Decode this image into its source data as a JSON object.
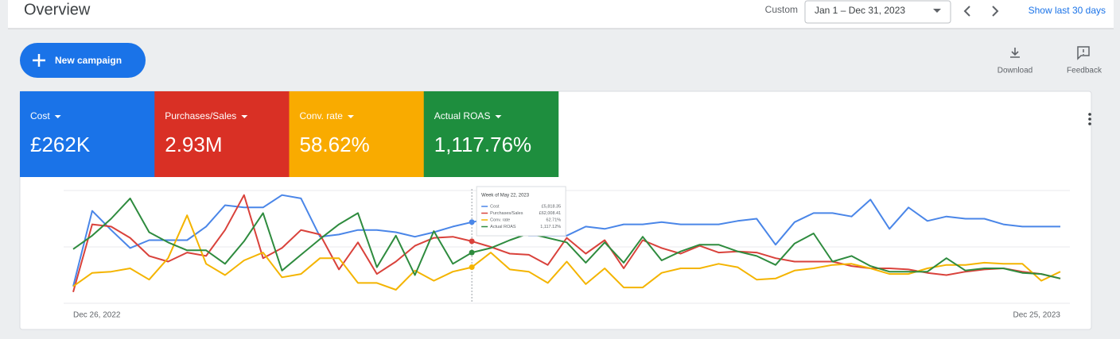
{
  "header": {
    "title": "Overview",
    "range_type": "Custom",
    "date_range": "Jan 1 – Dec 31, 2023",
    "shortcut": "Show last 30 days"
  },
  "toolbar": {
    "new_campaign": "New campaign",
    "download": "Download",
    "feedback": "Feedback"
  },
  "scorecards": [
    {
      "label": "Cost",
      "value": "£262K",
      "color": "#1a73e8"
    },
    {
      "label": "Purchases/Sales",
      "value": "2.93M",
      "color": "#d93025"
    },
    {
      "label": "Conv. rate",
      "value": "58.62%",
      "color": "#f9ab00"
    },
    {
      "label": "Actual ROAS",
      "value": "1,117.76%",
      "color": "#1e8e3e"
    }
  ],
  "chart": {
    "type": "line",
    "ylim": [
      0,
      100
    ],
    "yticks": [
      0,
      50,
      100
    ],
    "show_tick_labels": false,
    "grid": true,
    "categories": [
      "Dec 26, 2022",
      null,
      null,
      null,
      null,
      null,
      null,
      null,
      null,
      null,
      null,
      null,
      null,
      null,
      null,
      null,
      null,
      null,
      null,
      null,
      null,
      null,
      null,
      null,
      null,
      null,
      null,
      null,
      null,
      null,
      null,
      null,
      null,
      null,
      null,
      null,
      null,
      null,
      null,
      null,
      null,
      null,
      null,
      null,
      null,
      null,
      null,
      null,
      null,
      null,
      null,
      null,
      "Dec 25, 2023"
    ],
    "series": [
      {
        "name": "Cost",
        "color": "#4a86e8",
        "values": [
          15,
          82,
          65,
          49,
          56,
          56,
          56,
          68,
          87,
          85,
          85,
          96,
          93,
          59,
          61,
          65,
          65,
          63,
          59,
          63,
          68,
          72,
          75,
          65,
          60,
          60,
          60,
          68,
          66,
          70,
          70,
          72,
          70,
          70,
          70,
          73,
          75,
          52,
          72,
          80,
          80,
          77,
          92,
          66,
          85,
          73,
          77,
          75,
          75,
          70,
          68,
          68,
          68
        ]
      },
      {
        "name": "Purchases/Sales",
        "color": "#d9423b",
        "values": [
          10,
          70,
          68,
          58,
          42,
          37,
          45,
          42,
          65,
          96,
          40,
          49,
          65,
          61,
          30,
          54,
          26,
          37,
          51,
          58,
          59,
          55,
          50,
          44,
          43,
          34,
          58,
          44,
          56,
          31,
          56,
          49,
          44,
          51,
          45,
          46,
          45,
          40,
          37,
          37,
          37,
          33,
          31,
          31,
          30,
          27,
          25,
          28,
          30,
          31,
          28,
          26,
          22
        ]
      },
      {
        "name": "Conv. rate",
        "color": "#f4b400",
        "values": [
          15,
          27,
          28,
          31,
          21,
          40,
          78,
          35,
          25,
          38,
          45,
          23,
          26,
          40,
          40,
          18,
          18,
          12,
          29,
          20,
          28,
          32,
          45,
          30,
          28,
          18,
          37,
          17,
          31,
          14,
          14,
          27,
          31,
          31,
          35,
          32,
          21,
          22,
          29,
          31,
          34,
          35,
          31,
          26,
          26,
          31,
          34,
          34,
          36,
          35,
          35,
          20,
          28
        ]
      },
      {
        "name": "Actual ROAS",
        "color": "#2e8b3e",
        "values": [
          48,
          60,
          75,
          93,
          63,
          54,
          47,
          47,
          35,
          55,
          80,
          29,
          43,
          57,
          70,
          80,
          32,
          60,
          25,
          64,
          35,
          45,
          49,
          56,
          62,
          58,
          54,
          36,
          54,
          36,
          59,
          38,
          46,
          52,
          52,
          46,
          42,
          34,
          53,
          62,
          37,
          42,
          33,
          28,
          28,
          28,
          40,
          29,
          31,
          31,
          27,
          26,
          22
        ]
      }
    ],
    "tooltip": {
      "index": 21,
      "title": "Week of May 22, 2023",
      "values": [
        "£5,818.35",
        "£62,008.41",
        "62.71%",
        "1,117.12%"
      ]
    }
  }
}
